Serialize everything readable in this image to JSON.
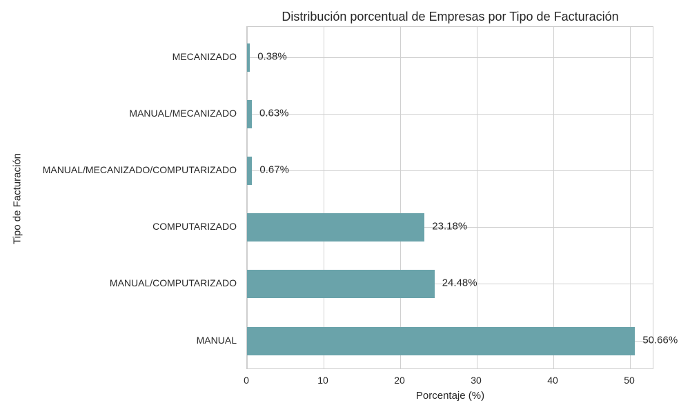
{
  "chart_data": {
    "type": "bar",
    "orientation": "horizontal",
    "title": "Distribución porcentual de Empresas por Tipo de Facturación",
    "xlabel": "Porcentaje (%)",
    "ylabel": "Tipo de Facturación",
    "xlim": [
      0,
      53
    ],
    "xticks": [
      0,
      10,
      20,
      30,
      40,
      50
    ],
    "grid": true,
    "bar_color": "#6aa3aa",
    "categories": [
      "MECANIZADO",
      "MANUAL/MECANIZADO",
      "MANUAL/MECANIZADO/COMPUTARIZADO",
      "COMPUTARIZADO",
      "MANUAL/COMPUTARIZADO",
      "MANUAL"
    ],
    "values": [
      0.38,
      0.63,
      0.67,
      23.18,
      24.48,
      50.66
    ],
    "value_labels": [
      "0.38%",
      "0.63%",
      "0.67%",
      "23.18%",
      "24.48%",
      "50.66%"
    ]
  }
}
